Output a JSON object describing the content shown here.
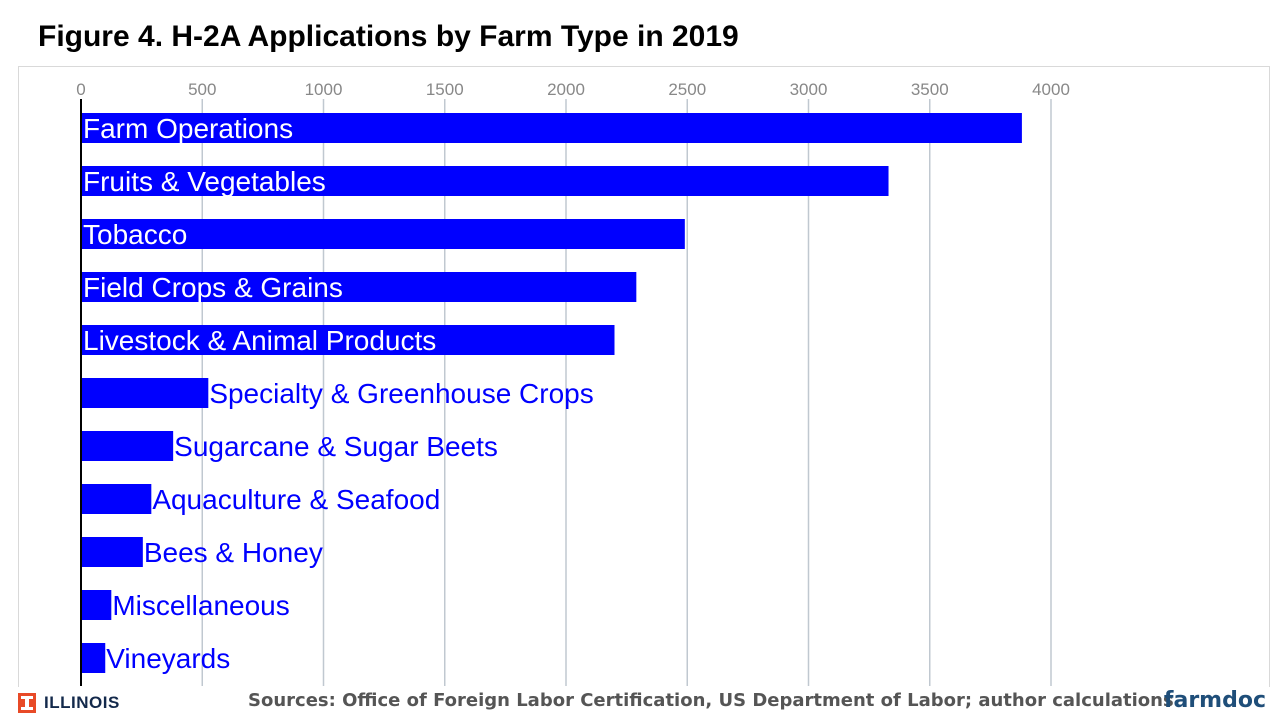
{
  "header": {
    "title": "Figure 4. H-2A Applications by Farm Type in 2019"
  },
  "footer": {
    "source": "Sources: Office of Foreign Labor Certification, US Department of Labor; author calculations",
    "logo_text": "ILLINOIS",
    "brand": "farmdoc"
  },
  "colors": {
    "bar": "#0000ff",
    "label": "#0000ff",
    "grid": "#c0c8d0",
    "logo_orange": "#e84a27",
    "logo_navy": "#13294b",
    "brand": "#1f4e79"
  },
  "icons": {
    "logo": "illinois-block-i-icon"
  },
  "chart_data": {
    "type": "bar",
    "orientation": "horizontal",
    "title": "Figure 4. H-2A Applications by Farm Type in 2019",
    "xlabel": "",
    "ylabel": "",
    "xlim": [
      0,
      4000
    ],
    "ticks": [
      0,
      500,
      1000,
      1500,
      2000,
      2500,
      3000,
      3500,
      4000
    ],
    "grid": true,
    "categories": [
      "Farm Operations",
      "Fruits & Vegetables",
      "Tobacco",
      "Field Crops & Grains",
      "Livestock & Animal Products",
      "Specialty & Greenhouse Crops",
      "Sugarcane & Sugar Beets",
      "Aquaculture & Seafood",
      "Bees & Honey",
      "Miscellaneous",
      "Vineyards"
    ],
    "values": [
      3880,
      3330,
      2490,
      2290,
      2200,
      525,
      380,
      290,
      255,
      125,
      100
    ]
  }
}
